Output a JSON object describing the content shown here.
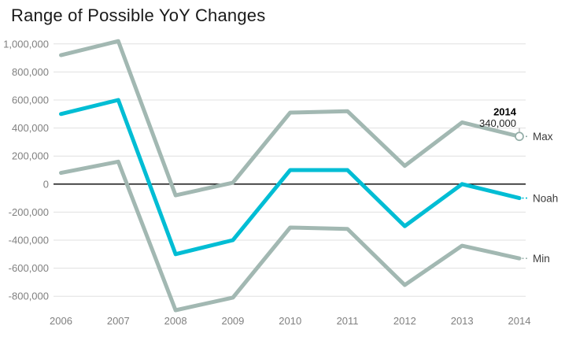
{
  "header": {
    "title": "Range of Possible YoY Changes"
  },
  "chart_data": {
    "type": "line",
    "title": "Range of Possible YoY Changes",
    "xlabel": "",
    "ylabel": "",
    "categories": [
      "2006",
      "2007",
      "2008",
      "2009",
      "2010",
      "2011",
      "2012",
      "2013",
      "2014"
    ],
    "series": [
      {
        "name": "Max",
        "color": "#a2b8b2",
        "end_label": "Max",
        "end_marker": "open-circle",
        "values": [
          920000,
          1020000,
          -80000,
          10000,
          510000,
          520000,
          130000,
          440000,
          340000
        ]
      },
      {
        "name": "Noah",
        "color": "#00bdd4",
        "end_label": "Noah",
        "end_marker": "dash",
        "values": [
          500000,
          600000,
          -500000,
          -400000,
          100000,
          100000,
          -300000,
          0,
          -100000
        ]
      },
      {
        "name": "Min",
        "color": "#a2b8b2",
        "end_label": "Min",
        "end_marker": "dash",
        "values": [
          80000,
          160000,
          -900000,
          -810000,
          -310000,
          -320000,
          -720000,
          -440000,
          -530000
        ]
      }
    ],
    "ylim": [
      -900000,
      1100000
    ],
    "yticks": [
      {
        "value": 1000000,
        "label": "1,000,000"
      },
      {
        "value": 800000,
        "label": "800,000"
      },
      {
        "value": 600000,
        "label": "600,000"
      },
      {
        "value": 400000,
        "label": "400,000"
      },
      {
        "value": 200000,
        "label": "200,000"
      },
      {
        "value": 0,
        "label": "0"
      },
      {
        "value": -200000,
        "label": "-200,000"
      },
      {
        "value": -400000,
        "label": "-400,000"
      },
      {
        "value": -600000,
        "label": "-600,000"
      },
      {
        "value": -800000,
        "label": "-800,000"
      }
    ],
    "grid": true,
    "zero_axis": true,
    "legend_position": "end-of-line",
    "annotation": {
      "series": "Max",
      "category": "2014",
      "year_label": "2014",
      "value_label": "340,000"
    },
    "colors": {
      "grid": "#e0e0e0",
      "zero_line": "#000000",
      "axis_label": "#808080",
      "series_label": "#3c3c3c",
      "annotation_year": "#000000",
      "annotation_value": "#1f1f1f",
      "marker_stroke": "#93ada7",
      "connector": "#999999"
    }
  }
}
